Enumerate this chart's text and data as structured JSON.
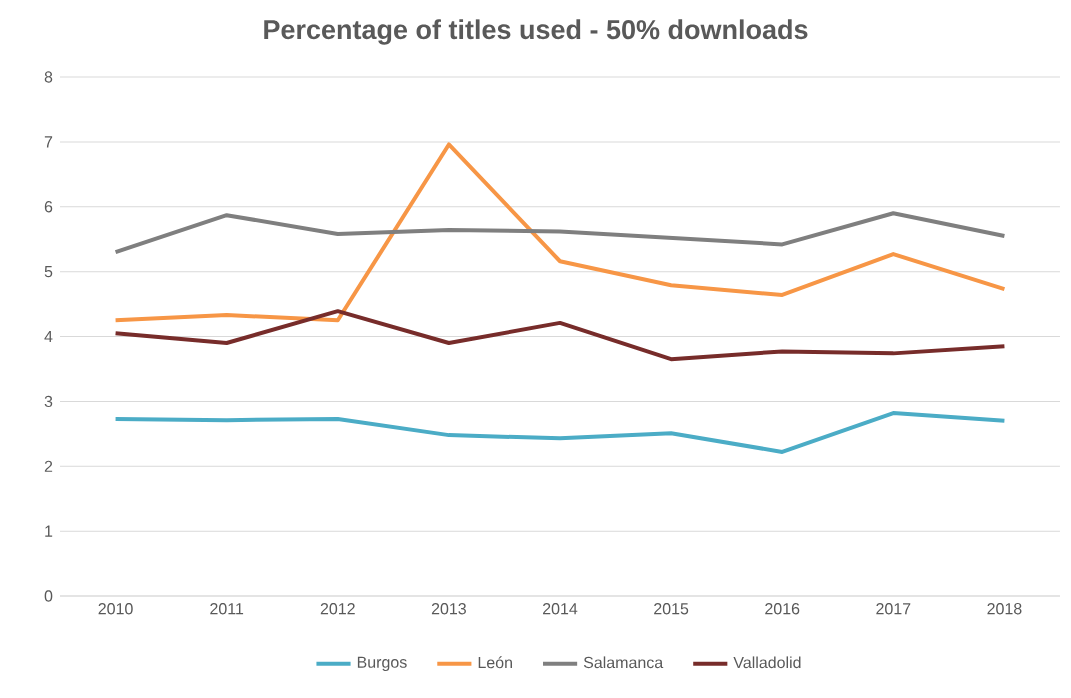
{
  "chart_data": {
    "type": "line",
    "title": "Percentage of titles used - 50% downloads",
    "categories": [
      "2010",
      "2011",
      "2012",
      "2013",
      "2014",
      "2015",
      "2016",
      "2017",
      "2018"
    ],
    "series": [
      {
        "name": "Burgos",
        "color": "#4bacc6",
        "values": [
          2.73,
          2.71,
          2.73,
          2.48,
          2.43,
          2.51,
          2.22,
          2.82,
          2.7
        ]
      },
      {
        "name": "León",
        "color": "#f79646",
        "values": [
          4.25,
          4.33,
          4.25,
          6.96,
          5.16,
          4.79,
          4.64,
          5.27,
          4.73
        ]
      },
      {
        "name": "Salamanca",
        "color": "#7f7f7f",
        "values": [
          5.3,
          5.87,
          5.58,
          5.64,
          5.62,
          5.52,
          5.42,
          5.9,
          5.55
        ]
      },
      {
        "name": "Valladolid",
        "color": "#772c2a",
        "values": [
          4.05,
          3.9,
          4.39,
          3.9,
          4.21,
          3.65,
          3.77,
          3.74,
          3.85
        ]
      }
    ],
    "ylim": [
      0,
      8
    ],
    "yticks": [
      0,
      1,
      2,
      3,
      4,
      5,
      6,
      7,
      8
    ],
    "grid": "y",
    "legend": "bottom"
  }
}
